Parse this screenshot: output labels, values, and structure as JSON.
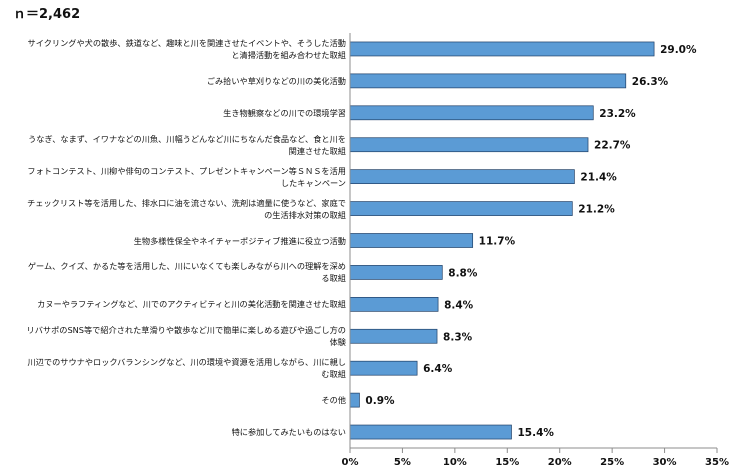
{
  "sample_size": "ｎ＝2,462",
  "chart_data": {
    "type": "bar",
    "orientation": "horizontal",
    "categories": [
      "サイクリングや犬の散歩、鉄道など、趣味と川を関連させたイベントや、そうした活動\nと清掃活動を組み合わせた取組",
      "ごみ拾いや草刈りなどの川の美化活動",
      "生き物観察などの川での環境学習",
      "うなぎ、なまず、イワナなどの川魚、川幅うどんなど川にちなんだ食品など、食と川を\n関連させた取組",
      "フォトコンテスト、川柳や俳句のコンテスト、プレゼントキャンペーン等ＳＮＳを活用\nしたキャンペーン",
      "チェックリスト等を活用した、排水口に油を流さない、洗剤は適量に使うなど、家庭で\nの生活排水対策の取組",
      "生物多様性保全やネイチャーポジティブ推進に役立つ活動",
      "ゲーム、クイズ、かるた等を活用した、川にいなくても楽しみながら川への理解を深め\nる取組",
      "カヌーやラフティングなど、川でのアクティビティと川の美化活動を関連させた取組",
      "リバサポのSNS等で紹介された草滑りや散歩など川で簡単に楽しめる遊びや過ごし方の\n体験",
      "川辺でのサウナやロックバランシングなど、川の環境や資源を活用しながら、川に親し\nむ取組",
      "その他",
      "特に参加してみたいものはない"
    ],
    "values": [
      29.0,
      26.3,
      23.2,
      22.7,
      21.4,
      21.2,
      11.7,
      8.8,
      8.4,
      8.3,
      6.4,
      0.9,
      15.4
    ],
    "value_labels": [
      "29.0%",
      "26.3%",
      "23.2%",
      "22.7%",
      "21.4%",
      "21.2%",
      "11.7%",
      "8.8%",
      "8.4%",
      "8.3%",
      "6.4%",
      "0.9%",
      "15.4%"
    ],
    "x_ticks": [
      0,
      5,
      10,
      15,
      20,
      25,
      30,
      35
    ],
    "x_tick_labels": [
      "0%",
      "5%",
      "10%",
      "15%",
      "20%",
      "25%",
      "30%",
      "35%"
    ],
    "xlim": [
      0,
      35
    ],
    "grid": false,
    "legend": "none",
    "bar_color": "#5B9BD5",
    "bar_outline_color": "#1F3F66",
    "axis_color": "#8C8C8C"
  }
}
